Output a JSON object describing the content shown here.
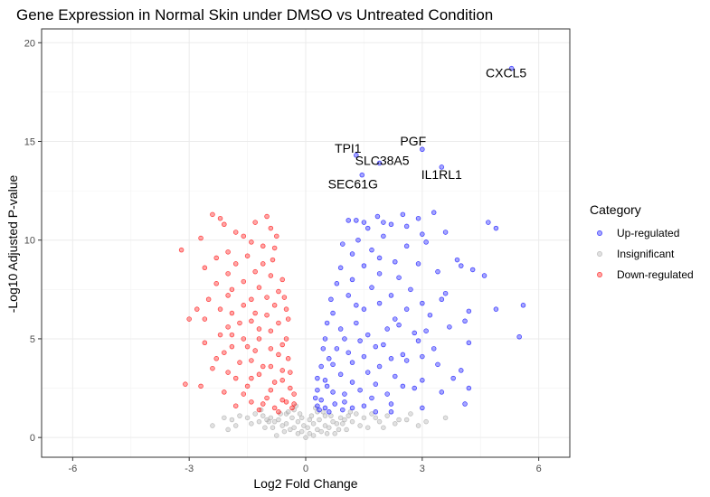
{
  "chart_data": {
    "type": "scatter",
    "title": "Gene Expression in Normal Skin under DMSO vs Untreated Condition",
    "xlabel": "Log2 Fold Change",
    "ylabel": "-Log10 Adjusted P-value",
    "xlim": [
      -6.8,
      6.8
    ],
    "ylim": [
      -1.0,
      20.7
    ],
    "xticks": [
      -6,
      -3,
      0,
      3,
      6
    ],
    "yticks": [
      0,
      5,
      10,
      15,
      20
    ],
    "grid": true,
    "legend": {
      "title": "Category",
      "placement": "right",
      "entries": [
        {
          "label": "Up-regulated",
          "color": "#0000ff"
        },
        {
          "label": "Insignificant",
          "color": "#a9a9a9"
        },
        {
          "label": "Down-regulated",
          "color": "#ff0000"
        }
      ]
    },
    "series": [
      {
        "name": "Up-regulated",
        "color": "#0000ff",
        "labeled_points": [
          {
            "gene": "CXCL5",
            "x": 5.3,
            "y": 18.7
          },
          {
            "gene": "PGF",
            "x": 3.0,
            "y": 14.6
          },
          {
            "gene": "TPI1",
            "x": 1.3,
            "y": 14.3
          },
          {
            "gene": "SLC38A5",
            "x": 1.9,
            "y": 13.9
          },
          {
            "gene": "IL1RL1",
            "x": 3.5,
            "y": 13.7
          },
          {
            "gene": "SEC61G",
            "x": 1.45,
            "y": 13.3
          }
        ],
        "points": [
          [
            3.3,
            11.4
          ],
          [
            2.5,
            11.3
          ],
          [
            2.9,
            11.1
          ],
          [
            1.85,
            11.2
          ],
          [
            1.1,
            11.0
          ],
          [
            1.5,
            10.9
          ],
          [
            2.2,
            10.8
          ],
          [
            4.7,
            10.9
          ],
          [
            4.9,
            10.6
          ],
          [
            3.6,
            10.4
          ],
          [
            2.0,
            10.2
          ],
          [
            1.35,
            10.0
          ],
          [
            0.95,
            9.8
          ],
          [
            3.1,
            9.9
          ],
          [
            2.6,
            9.7
          ],
          [
            1.7,
            9.5
          ],
          [
            3.9,
            9.0
          ],
          [
            4.0,
            8.7
          ],
          [
            4.3,
            8.5
          ],
          [
            4.6,
            8.2
          ],
          [
            3.4,
            8.4
          ],
          [
            2.4,
            8.1
          ],
          [
            1.9,
            8.3
          ],
          [
            1.2,
            8.0
          ],
          [
            0.8,
            7.8
          ],
          [
            2.7,
            7.5
          ],
          [
            3.6,
            7.3
          ],
          [
            3.5,
            7.0
          ],
          [
            5.6,
            6.7
          ],
          [
            4.9,
            6.5
          ],
          [
            4.2,
            6.4
          ],
          [
            3.2,
            6.2
          ],
          [
            2.3,
            6.0
          ],
          [
            1.5,
            6.5
          ],
          [
            0.7,
            6.3
          ],
          [
            0.9,
            5.5
          ],
          [
            1.6,
            5.2
          ],
          [
            2.1,
            5.5
          ],
          [
            2.8,
            5.3
          ],
          [
            3.7,
            5.6
          ],
          [
            4.1,
            5.9
          ],
          [
            5.5,
            5.1
          ],
          [
            4.2,
            4.8
          ],
          [
            3.3,
            4.5
          ],
          [
            2.5,
            4.2
          ],
          [
            1.8,
            4.6
          ],
          [
            1.1,
            4.3
          ],
          [
            0.6,
            4.0
          ],
          [
            2.6,
            3.9
          ],
          [
            3.4,
            3.7
          ],
          [
            4.0,
            3.4
          ],
          [
            3.8,
            3.0
          ],
          [
            3.0,
            2.9
          ],
          [
            2.3,
            3.1
          ],
          [
            1.6,
            3.3
          ],
          [
            0.9,
            3.2
          ],
          [
            0.5,
            2.9
          ],
          [
            4.2,
            2.5
          ],
          [
            3.5,
            2.3
          ],
          [
            2.8,
            2.5
          ],
          [
            2.1,
            2.2
          ],
          [
            1.4,
            2.4
          ],
          [
            0.7,
            2.3
          ],
          [
            0.4,
            1.9
          ],
          [
            4.1,
            1.7
          ],
          [
            3.0,
            1.5
          ],
          [
            2.2,
            1.7
          ],
          [
            1.5,
            1.6
          ],
          [
            1.0,
            1.8
          ],
          [
            0.5,
            1.5
          ],
          [
            0.35,
            1.4
          ],
          [
            2.2,
            1.3
          ],
          [
            2.0,
            10.9
          ],
          [
            1.6,
            10.6
          ],
          [
            1.3,
            11.0
          ],
          [
            2.6,
            10.7
          ],
          [
            3.0,
            10.3
          ],
          [
            1.2,
            9.3
          ],
          [
            1.9,
            9.1
          ],
          [
            2.3,
            8.9
          ],
          [
            1.5,
            8.7
          ],
          [
            0.9,
            8.6
          ],
          [
            2.9,
            8.8
          ],
          [
            1.7,
            7.6
          ],
          [
            2.2,
            7.2
          ],
          [
            1.1,
            7.2
          ],
          [
            0.65,
            7.0
          ],
          [
            3.0,
            6.8
          ],
          [
            2.6,
            6.5
          ],
          [
            1.9,
            6.8
          ],
          [
            1.3,
            6.7
          ],
          [
            0.55,
            5.8
          ],
          [
            1.3,
            5.8
          ],
          [
            2.4,
            5.7
          ],
          [
            3.1,
            5.4
          ],
          [
            0.5,
            5.0
          ],
          [
            1.0,
            5.0
          ],
          [
            1.4,
            4.9
          ],
          [
            2.0,
            4.7
          ],
          [
            2.9,
            4.9
          ],
          [
            0.45,
            4.5
          ],
          [
            0.8,
            4.5
          ],
          [
            1.5,
            4.1
          ],
          [
            2.2,
            4.0
          ],
          [
            3.0,
            4.1
          ],
          [
            0.4,
            3.6
          ],
          [
            0.7,
            3.7
          ],
          [
            1.2,
            3.8
          ],
          [
            1.9,
            3.6
          ],
          [
            0.3,
            3.0
          ],
          [
            1.2,
            2.8
          ],
          [
            1.8,
            2.7
          ],
          [
            2.5,
            2.6
          ],
          [
            0.3,
            2.4
          ],
          [
            0.55,
            2.6
          ],
          [
            1.0,
            2.2
          ],
          [
            1.7,
            2.0
          ],
          [
            0.25,
            2.0
          ],
          [
            0.75,
            1.7
          ],
          [
            1.2,
            1.5
          ],
          [
            0.3,
            1.6
          ],
          [
            0.6,
            1.3
          ],
          [
            0.95,
            1.4
          ],
          [
            1.8,
            1.3
          ]
        ]
      },
      {
        "name": "Insignificant",
        "color": "#a9a9a9",
        "points": [
          [
            0,
            0
          ],
          [
            0.1,
            0.2
          ],
          [
            -0.1,
            0.3
          ],
          [
            0.2,
            0.1
          ],
          [
            -0.2,
            0.2
          ],
          [
            0.3,
            0.4
          ],
          [
            -0.3,
            0.5
          ],
          [
            0.4,
            0.3
          ],
          [
            -0.4,
            0.4
          ],
          [
            0.5,
            0.6
          ],
          [
            -0.5,
            0.7
          ],
          [
            0.6,
            0.5
          ],
          [
            -0.6,
            0.6
          ],
          [
            0.7,
            0.8
          ],
          [
            -0.7,
            0.9
          ],
          [
            0.8,
            0.7
          ],
          [
            -0.8,
            0.8
          ],
          [
            0.9,
            1.0
          ],
          [
            -0.9,
            1.0
          ],
          [
            1.0,
            0.9
          ],
          [
            -1.0,
            0.9
          ],
          [
            1.1,
            1.1
          ],
          [
            -1.1,
            1.1
          ],
          [
            1.2,
            0.8
          ],
          [
            -1.2,
            0.8
          ],
          [
            1.3,
            1.2
          ],
          [
            -1.3,
            1.2
          ],
          [
            1.5,
            1.0
          ],
          [
            -1.5,
            1.0
          ],
          [
            1.7,
            1.2
          ],
          [
            -1.7,
            1.1
          ],
          [
            1.9,
            0.8
          ],
          [
            -1.9,
            0.9
          ],
          [
            2.1,
            1.1
          ],
          [
            -2.1,
            1.0
          ],
          [
            2.4,
            0.9
          ],
          [
            -2.4,
            0.6
          ],
          [
            2.7,
            1.2
          ],
          [
            2.9,
            0.6
          ],
          [
            3.1,
            0.8
          ],
          [
            -1.8,
            0.6
          ],
          [
            1.6,
            0.5
          ],
          [
            0.2,
            0.7
          ],
          [
            -0.2,
            0.8
          ],
          [
            0.15,
            1.1
          ],
          [
            -0.15,
            1.2
          ],
          [
            0.05,
            0.5
          ],
          [
            -0.05,
            0.6
          ],
          [
            0.35,
            0.9
          ],
          [
            -0.35,
            1.0
          ],
          [
            0.45,
            1.3
          ],
          [
            -0.45,
            1.3
          ],
          [
            0.25,
            1.5
          ],
          [
            -0.25,
            1.6
          ],
          [
            0.55,
            0.2
          ],
          [
            -0.55,
            0.3
          ],
          [
            0.65,
            1.1
          ],
          [
            -0.65,
            1.2
          ],
          [
            0.85,
            0.4
          ],
          [
            -0.85,
            0.5
          ],
          [
            1.05,
            0.4
          ],
          [
            -1.05,
            0.5
          ],
          [
            1.4,
            0.6
          ],
          [
            -1.4,
            0.7
          ],
          [
            1.8,
            1.0
          ],
          [
            2.0,
            0.5
          ],
          [
            -2.0,
            0.4
          ],
          [
            2.3,
            0.7
          ],
          [
            2.6,
            0.9
          ],
          [
            3.6,
            1.0
          ],
          [
            0.75,
            0.2
          ],
          [
            -0.75,
            0.1
          ],
          [
            0.95,
            0.7
          ],
          [
            -0.95,
            0.8
          ],
          [
            1.15,
            1.3
          ],
          [
            -1.15,
            1.4
          ],
          [
            0.5,
            1.1
          ],
          [
            -0.5,
            1.2
          ],
          [
            0.3,
            1.3
          ],
          [
            -0.3,
            1.4
          ],
          [
            0.1,
            0.9
          ],
          [
            -0.1,
            1.0
          ]
        ]
      },
      {
        "name": "Down-regulated",
        "color": "#ff0000",
        "points": [
          [
            -2.4,
            11.3
          ],
          [
            -1.0,
            11.2
          ],
          [
            -2.1,
            10.8
          ],
          [
            -0.9,
            10.6
          ],
          [
            -1.8,
            10.4
          ],
          [
            -0.75,
            10.2
          ],
          [
            -3.2,
            9.5
          ],
          [
            -2.0,
            9.4
          ],
          [
            -1.4,
            9.9
          ],
          [
            -0.8,
            9.6
          ],
          [
            -2.6,
            8.6
          ],
          [
            -1.8,
            8.8
          ],
          [
            -1.1,
            8.8
          ],
          [
            -0.9,
            8.2
          ],
          [
            -2.3,
            7.8
          ],
          [
            -1.6,
            7.9
          ],
          [
            -1.2,
            7.6
          ],
          [
            -0.7,
            7.4
          ],
          [
            -2.5,
            7.0
          ],
          [
            -2.0,
            7.2
          ],
          [
            -1.4,
            7.0
          ],
          [
            -2.2,
            6.5
          ],
          [
            -1.9,
            6.3
          ],
          [
            -1.3,
            6.3
          ],
          [
            -0.8,
            6.7
          ],
          [
            -0.5,
            6.5
          ],
          [
            -3.0,
            6.0
          ],
          [
            -2.6,
            6.0
          ],
          [
            -1.7,
            5.8
          ],
          [
            -1.2,
            5.5
          ],
          [
            -2.2,
            5.2
          ],
          [
            -1.6,
            5.0
          ],
          [
            -0.9,
            5.4
          ],
          [
            -0.5,
            5.0
          ],
          [
            -2.6,
            4.8
          ],
          [
            -1.9,
            4.6
          ],
          [
            -1.3,
            4.4
          ],
          [
            -0.7,
            4.2
          ],
          [
            -2.3,
            4.0
          ],
          [
            -1.7,
            3.8
          ],
          [
            -1.1,
            3.6
          ],
          [
            -0.6,
            3.4
          ],
          [
            -2.0,
            3.3
          ],
          [
            -1.4,
            3.0
          ],
          [
            -0.8,
            2.8
          ],
          [
            -0.4,
            2.5
          ],
          [
            -3.1,
            2.7
          ],
          [
            -2.7,
            2.6
          ],
          [
            -1.6,
            2.2
          ],
          [
            -1.0,
            2.0
          ],
          [
            -0.5,
            1.8
          ],
          [
            -0.35,
            1.5
          ],
          [
            -1.8,
            1.6
          ],
          [
            -1.2,
            1.4
          ],
          [
            -0.7,
            1.3
          ],
          [
            -2.2,
            11.1
          ],
          [
            -1.3,
            10.9
          ],
          [
            -2.7,
            10.1
          ],
          [
            -1.6,
            10.2
          ],
          [
            -1.1,
            9.7
          ],
          [
            -2.3,
            9.1
          ],
          [
            -1.5,
            9.2
          ],
          [
            -0.85,
            9.0
          ],
          [
            -2.0,
            8.3
          ],
          [
            -1.3,
            8.4
          ],
          [
            -0.6,
            8.0
          ],
          [
            -1.9,
            7.5
          ],
          [
            -1.0,
            7.1
          ],
          [
            -0.55,
            7.1
          ],
          [
            -2.8,
            6.5
          ],
          [
            -1.6,
            6.7
          ],
          [
            -1.0,
            6.2
          ],
          [
            -0.45,
            6.0
          ],
          [
            -2.0,
            5.6
          ],
          [
            -1.4,
            5.9
          ],
          [
            -0.7,
            5.8
          ],
          [
            -1.9,
            5.2
          ],
          [
            -1.2,
            5.0
          ],
          [
            -0.6,
            4.7
          ],
          [
            -2.1,
            4.3
          ],
          [
            -1.5,
            4.6
          ],
          [
            -0.9,
            4.5
          ],
          [
            -0.45,
            4.0
          ],
          [
            -1.4,
            3.9
          ],
          [
            -0.9,
            3.6
          ],
          [
            -0.4,
            3.3
          ],
          [
            -2.4,
            3.5
          ],
          [
            -1.8,
            3.0
          ],
          [
            -1.2,
            3.2
          ],
          [
            -0.6,
            2.9
          ],
          [
            -0.3,
            2.2
          ],
          [
            -1.5,
            2.6
          ],
          [
            -0.9,
            2.4
          ],
          [
            -2.1,
            2.3
          ],
          [
            -0.6,
            1.9
          ],
          [
            -1.1,
            1.7
          ],
          [
            -0.3,
            1.7
          ],
          [
            -0.8,
            1.5
          ],
          [
            -1.4,
            1.8
          ]
        ]
      }
    ]
  }
}
